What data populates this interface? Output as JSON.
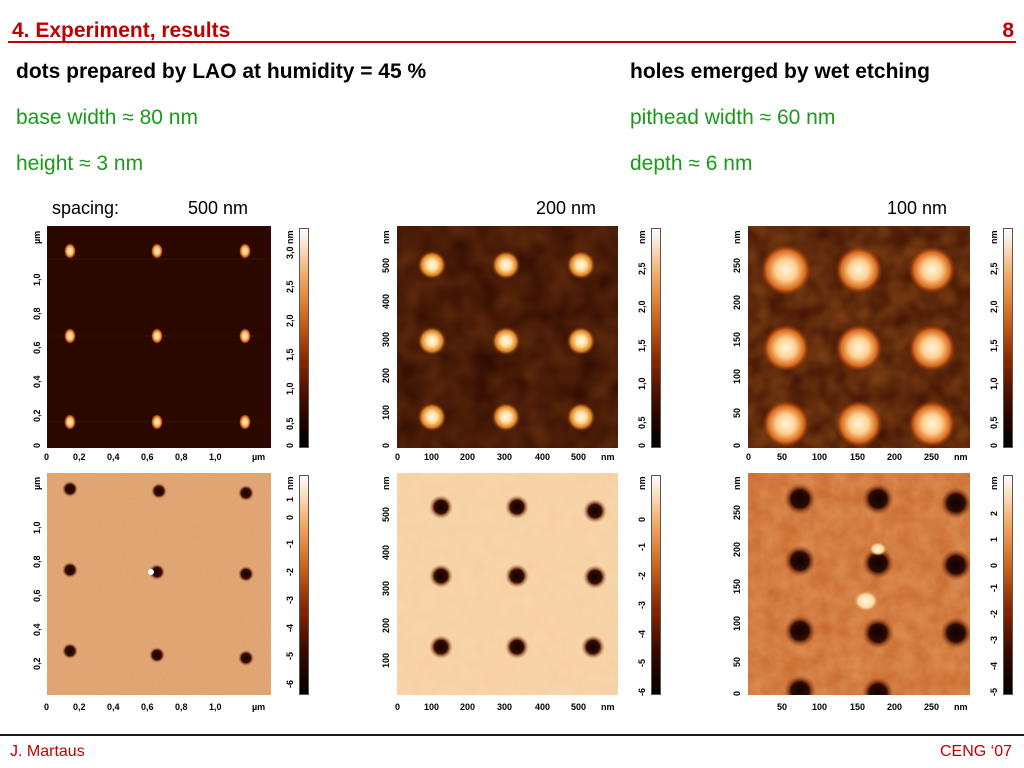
{
  "header": {
    "title": "4. Experiment, results",
    "page_number": "8"
  },
  "left_column": {
    "heading": "dots prepared by LAO at humidity = 45 %",
    "line1": "base width ≈ 80 nm",
    "line2": "height ≈ 3 nm"
  },
  "right_column": {
    "heading": "holes emerged by wet etching",
    "line1": "pithead width ≈ 60 nm",
    "line2": "depth ≈ 6 nm"
  },
  "spacing": {
    "label": "spacing:",
    "values": [
      "500  nm",
      "200  nm",
      "100  nm"
    ]
  },
  "panels": {
    "p500": {
      "unit": "µm",
      "x_ticks": [
        "0",
        "0,2",
        "0,4",
        "0,6",
        "0,8",
        "1,0"
      ],
      "y_ticks": [
        "0",
        "0,2",
        "0,4",
        "0,6",
        "0,8",
        "1,0"
      ]
    },
    "p200": {
      "unit": "nm",
      "x_ticks": [
        "0",
        "100",
        "200",
        "300",
        "400",
        "500"
      ],
      "y_ticks_top": [
        "0",
        "100",
        "200",
        "300",
        "400",
        "500"
      ],
      "y_ticks_bottom": [
        "100",
        "200",
        "300",
        "400",
        "500"
      ]
    },
    "p100": {
      "unit": "nm",
      "x_ticks_top": [
        "0",
        "50",
        "100",
        "150",
        "200",
        "250"
      ],
      "x_ticks_bottom": [
        "50",
        "100",
        "150",
        "200",
        "250"
      ],
      "y_ticks": [
        "0",
        "50",
        "100",
        "150",
        "200",
        "250"
      ]
    }
  },
  "colorbars": {
    "unit": "nm",
    "top_500": [
      "0",
      "0,5",
      "1,0",
      "1,5",
      "2,0",
      "2,5",
      "3,0"
    ],
    "top_200": [
      "0",
      "0,5",
      "1,0",
      "1,5",
      "2,0",
      "2,5"
    ],
    "top_100": [
      "0",
      "0,5",
      "1,0",
      "1,5",
      "2,0",
      "2,5"
    ],
    "bottom_500": [
      "-6",
      "-5",
      "-4",
      "-3",
      "-2",
      "-1",
      "0",
      "1"
    ],
    "bottom_200": [
      "-6",
      "-5",
      "-4",
      "-3",
      "-2",
      "-1",
      "0"
    ],
    "bottom_100": [
      "-5",
      "-4",
      "-3",
      "-2",
      "-1",
      "0",
      "1",
      "2"
    ]
  },
  "colors": {
    "title_red": "#c00000",
    "note_green": "#1a9a1a",
    "afm_dark": "#2a0800",
    "afm_light": "#f4c08a"
  },
  "footer": {
    "author": "J. Martaus",
    "venue": "CENG ‘07"
  }
}
